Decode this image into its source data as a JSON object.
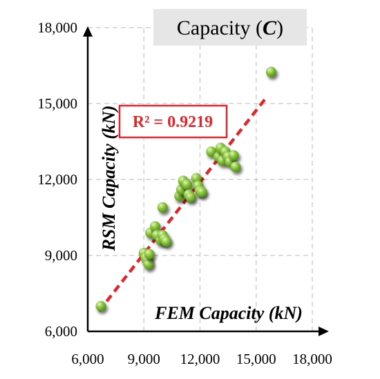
{
  "chart_data": {
    "type": "scatter",
    "title_prefix": "Capacity (",
    "title_symbol": "C",
    "title_suffix": ")",
    "xlabel": "FEM Capacity (kN)",
    "ylabel": "RSM Capacity (kN)",
    "xlim": [
      6000,
      18000
    ],
    "ylim": [
      6000,
      18000
    ],
    "x_ticks": [
      6000,
      9000,
      12000,
      15000,
      18000
    ],
    "y_ticks": [
      6000,
      9000,
      12000,
      15000,
      18000
    ],
    "x_tick_labels": [
      "6,000",
      "9,000",
      "12,000",
      "15,000",
      "18,000"
    ],
    "y_tick_labels": [
      "6,000",
      "9,000",
      "12,000",
      "15,000",
      "18,000"
    ],
    "grid": true,
    "annotation": "R² = 0.9219",
    "trendline": {
      "x": [
        6600,
        15500
      ],
      "y": [
        6800,
        15200
      ]
    },
    "points": [
      {
        "x": 6700,
        "y": 7000
      },
      {
        "x": 9000,
        "y": 9100
      },
      {
        "x": 9100,
        "y": 8900
      },
      {
        "x": 9200,
        "y": 8800
      },
      {
        "x": 9250,
        "y": 8650
      },
      {
        "x": 9300,
        "y": 9050
      },
      {
        "x": 9350,
        "y": 9900
      },
      {
        "x": 9600,
        "y": 10150
      },
      {
        "x": 9700,
        "y": 9800
      },
      {
        "x": 9900,
        "y": 9600
      },
      {
        "x": 10000,
        "y": 9800
      },
      {
        "x": 10100,
        "y": 9650
      },
      {
        "x": 10200,
        "y": 9550
      },
      {
        "x": 10000,
        "y": 10900
      },
      {
        "x": 10900,
        "y": 11350
      },
      {
        "x": 11000,
        "y": 11600
      },
      {
        "x": 11100,
        "y": 11950
      },
      {
        "x": 11300,
        "y": 11800
      },
      {
        "x": 11400,
        "y": 11400
      },
      {
        "x": 11500,
        "y": 11300
      },
      {
        "x": 11800,
        "y": 12050
      },
      {
        "x": 11900,
        "y": 11750
      },
      {
        "x": 12000,
        "y": 11550
      },
      {
        "x": 12100,
        "y": 11500
      },
      {
        "x": 12600,
        "y": 13100
      },
      {
        "x": 13000,
        "y": 12900
      },
      {
        "x": 13100,
        "y": 13250
      },
      {
        "x": 13200,
        "y": 12750
      },
      {
        "x": 13350,
        "y": 13100
      },
      {
        "x": 13500,
        "y": 12900
      },
      {
        "x": 13600,
        "y": 12700
      },
      {
        "x": 13800,
        "y": 12950
      },
      {
        "x": 13900,
        "y": 12500
      },
      {
        "x": 15800,
        "y": 16250
      }
    ],
    "colors": {
      "point_fill": "#8cc63f",
      "point_highlight": "#e4f7b8",
      "point_dark": "#4d8a14",
      "trendline": "#e0262a",
      "grid": "#c8c8c8",
      "title_box": "#e6e6e6"
    }
  }
}
